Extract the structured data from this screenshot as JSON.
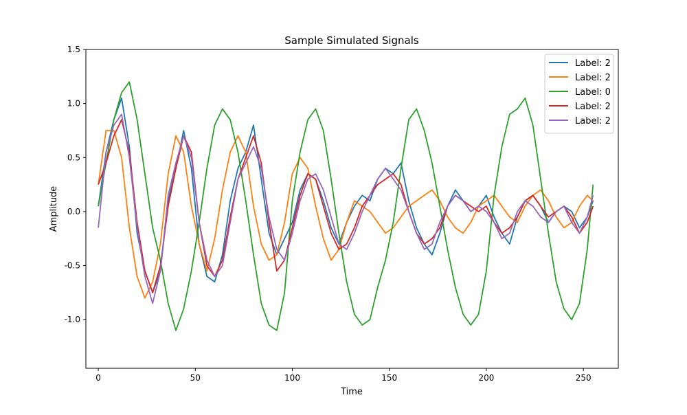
{
  "chart_data": {
    "type": "line",
    "title": "Sample Simulated Signals",
    "xlabel": "Time",
    "ylabel": "Amplitude",
    "xlim": [
      -6.4,
      268
    ],
    "ylim": [
      -1.45,
      1.5
    ],
    "xticks": [
      0,
      50,
      100,
      150,
      200,
      250
    ],
    "xtick_labels": [
      "0",
      "50",
      "100",
      "150",
      "200",
      "250"
    ],
    "yticks": [
      -1.0,
      -0.5,
      0.0,
      0.5,
      1.0,
      1.5
    ],
    "ytick_labels": [
      "-1.0",
      "-0.5",
      "0.0",
      "0.5",
      "1.0",
      "1.5"
    ],
    "grid": false,
    "legend_position": "top-right",
    "x": [
      0,
      4,
      8,
      12,
      16,
      20,
      24,
      28,
      32,
      36,
      40,
      44,
      48,
      52,
      56,
      60,
      64,
      68,
      72,
      76,
      80,
      84,
      88,
      92,
      96,
      100,
      104,
      108,
      112,
      116,
      120,
      124,
      128,
      132,
      136,
      140,
      144,
      148,
      152,
      156,
      160,
      164,
      168,
      172,
      176,
      180,
      184,
      188,
      192,
      196,
      200,
      204,
      208,
      212,
      216,
      220,
      224,
      228,
      232,
      236,
      240,
      244,
      248,
      252,
      255
    ],
    "series": [
      {
        "name": "Label: 2",
        "color": "#1f77b4",
        "values": [
          0.05,
          0.55,
          0.85,
          1.05,
          0.6,
          -0.2,
          -0.55,
          -0.75,
          -0.55,
          0.1,
          0.4,
          0.75,
          0.4,
          -0.3,
          -0.6,
          -0.65,
          -0.4,
          0.1,
          0.4,
          0.55,
          0.8,
          0.3,
          -0.2,
          -0.4,
          -0.25,
          -0.1,
          0.2,
          0.35,
          0.3,
          0.1,
          -0.15,
          -0.3,
          -0.1,
          0.05,
          0.15,
          0.1,
          0.3,
          0.4,
          0.35,
          0.45,
          0.1,
          -0.15,
          -0.3,
          -0.4,
          -0.2,
          0.05,
          0.2,
          0.1,
          0.0,
          0.05,
          0.15,
          -0.05,
          -0.2,
          -0.3,
          -0.05,
          0.1,
          0.15,
          0.05,
          -0.1,
          0.0,
          0.05,
          0.0,
          -0.15,
          -0.05,
          0.1
        ]
      },
      {
        "name": "Label: 2",
        "color": "#ff7f0e",
        "values": [
          0.25,
          0.75,
          0.75,
          0.5,
          -0.15,
          -0.6,
          -0.8,
          -0.65,
          -0.3,
          0.35,
          0.7,
          0.55,
          0.05,
          -0.3,
          -0.55,
          -0.25,
          0.2,
          0.55,
          0.7,
          0.55,
          0.05,
          -0.3,
          -0.45,
          -0.4,
          -0.1,
          0.35,
          0.5,
          0.4,
          0.05,
          -0.25,
          -0.45,
          -0.35,
          -0.1,
          0.1,
          0.05,
          0.0,
          -0.1,
          -0.2,
          -0.15,
          -0.05,
          0.05,
          0.1,
          0.15,
          0.2,
          0.1,
          -0.05,
          -0.15,
          -0.2,
          -0.1,
          0.05,
          0.1,
          0.15,
          0.05,
          -0.05,
          -0.1,
          0.05,
          0.15,
          0.2,
          0.1,
          -0.05,
          -0.15,
          -0.1,
          0.05,
          0.15,
          0.1
        ]
      },
      {
        "name": "Label: 0",
        "color": "#2ca02c",
        "values": [
          0.05,
          0.45,
          0.85,
          1.1,
          1.2,
          0.85,
          0.35,
          -0.15,
          -0.45,
          -0.85,
          -1.1,
          -0.9,
          -0.55,
          -0.1,
          0.4,
          0.8,
          0.95,
          0.85,
          0.55,
          0.1,
          -0.4,
          -0.85,
          -1.05,
          -1.1,
          -0.75,
          0.1,
          0.55,
          0.85,
          0.95,
          0.75,
          0.3,
          -0.2,
          -0.65,
          -0.95,
          -1.05,
          -1.0,
          -0.7,
          -0.45,
          -0.1,
          0.4,
          0.85,
          0.95,
          0.75,
          0.45,
          0.05,
          -0.35,
          -0.7,
          -0.95,
          -1.05,
          -0.95,
          -0.55,
          0.15,
          0.6,
          0.9,
          0.95,
          1.05,
          0.8,
          0.3,
          -0.2,
          -0.65,
          -0.9,
          -1.0,
          -0.85,
          -0.35,
          0.25
        ]
      },
      {
        "name": "Label: 2",
        "color": "#d62728",
        "values": [
          0.25,
          0.45,
          0.7,
          0.85,
          0.55,
          -0.1,
          -0.55,
          -0.75,
          -0.5,
          0.05,
          0.4,
          0.7,
          0.55,
          -0.1,
          -0.5,
          -0.6,
          -0.45,
          -0.05,
          0.3,
          0.5,
          0.7,
          0.45,
          -0.1,
          -0.55,
          -0.45,
          -0.15,
          0.15,
          0.35,
          0.3,
          0.05,
          -0.2,
          -0.35,
          -0.3,
          -0.15,
          0.05,
          0.15,
          0.25,
          0.3,
          0.35,
          0.25,
          0.0,
          -0.2,
          -0.3,
          -0.25,
          -0.15,
          0.05,
          0.15,
          0.1,
          0.05,
          0.0,
          0.05,
          -0.1,
          -0.2,
          -0.15,
          -0.05,
          0.1,
          0.15,
          0.05,
          -0.05,
          0.0,
          0.05,
          -0.05,
          -0.2,
          -0.1,
          0.05
        ]
      },
      {
        "name": "Label: 2",
        "color": "#9467bd",
        "values": [
          -0.15,
          0.55,
          0.8,
          0.9,
          0.5,
          -0.15,
          -0.6,
          -0.85,
          -0.55,
          0.15,
          0.45,
          0.7,
          0.5,
          -0.1,
          -0.45,
          -0.6,
          -0.5,
          -0.1,
          0.3,
          0.45,
          0.6,
          0.4,
          -0.05,
          -0.35,
          -0.45,
          -0.2,
          0.1,
          0.3,
          0.35,
          0.2,
          -0.05,
          -0.3,
          -0.35,
          -0.2,
          0.0,
          0.15,
          0.3,
          0.4,
          0.3,
          0.2,
          0.0,
          -0.2,
          -0.35,
          -0.3,
          -0.1,
          0.05,
          0.15,
          0.1,
          0.0,
          0.05,
          0.0,
          -0.1,
          -0.25,
          -0.2,
          0.0,
          0.1,
          0.05,
          -0.05,
          -0.1,
          0.0,
          0.05,
          -0.1,
          -0.2,
          -0.05,
          0.15
        ]
      }
    ]
  }
}
